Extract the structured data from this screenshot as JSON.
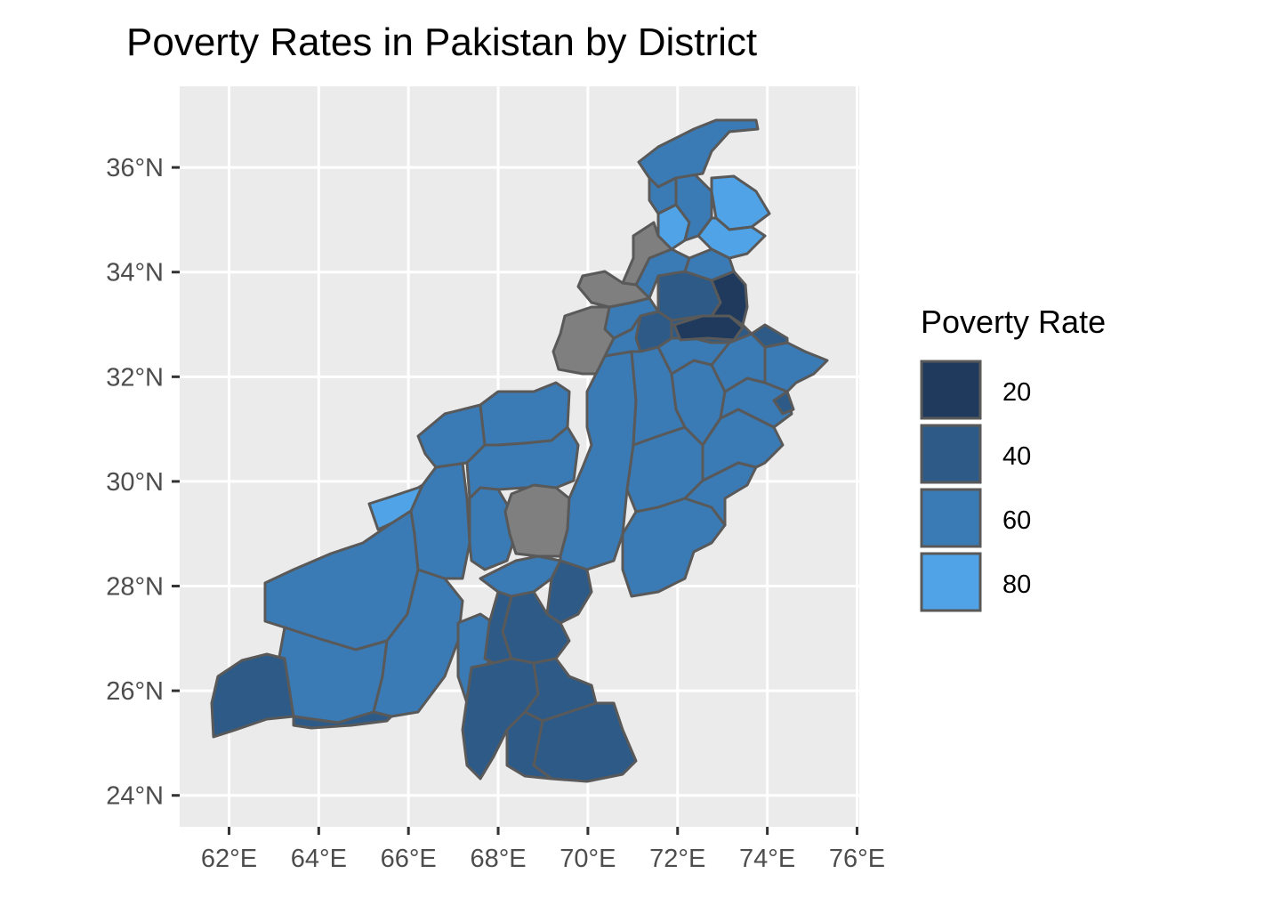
{
  "title": "Poverty Rates in Pakistan by District",
  "x_axis": {
    "ticks": [
      "62°E",
      "64°E",
      "66°E",
      "68°E",
      "70°E",
      "72°E",
      "74°E",
      "76°E"
    ],
    "values": [
      62,
      64,
      66,
      68,
      70,
      72,
      74,
      76
    ],
    "range": [
      60.9,
      76.05
    ]
  },
  "y_axis": {
    "ticks": [
      "36°N",
      "34°N",
      "32°N",
      "30°N",
      "28°N",
      "26°N",
      "24°N"
    ],
    "values": [
      36,
      34,
      32,
      30,
      28,
      26,
      24
    ],
    "range": [
      23.4,
      37.55
    ]
  },
  "legend": {
    "title": "Poverty Rate",
    "items": [
      {
        "label": "20",
        "value": 20,
        "color": "#1f3a5c"
      },
      {
        "label": "40",
        "value": 40,
        "color": "#2d5a87"
      },
      {
        "label": "60",
        "value": 60,
        "color": "#3a7ab5"
      },
      {
        "label": "80",
        "value": 80,
        "color": "#4fa3e6"
      }
    ]
  },
  "colors": {
    "panel_bg": "#ebebeb",
    "grid": "#ffffff",
    "missing": "#7f7f7f",
    "border": "#595959"
  },
  "chart_data": {
    "type": "choropleth",
    "region": "Pakistan",
    "unit": "district",
    "value_scale": "continuous",
    "value_range_approx": [
      15,
      85
    ],
    "missing_data_color": "#7f7f7f",
    "missing_data_regions": [
      "FATA tribal areas (north-west)",
      "Kohlu / Dera Bugti area (central)"
    ],
    "xlim": [
      60.9,
      76.05
    ],
    "ylim": [
      23.4,
      37.55
    ]
  }
}
